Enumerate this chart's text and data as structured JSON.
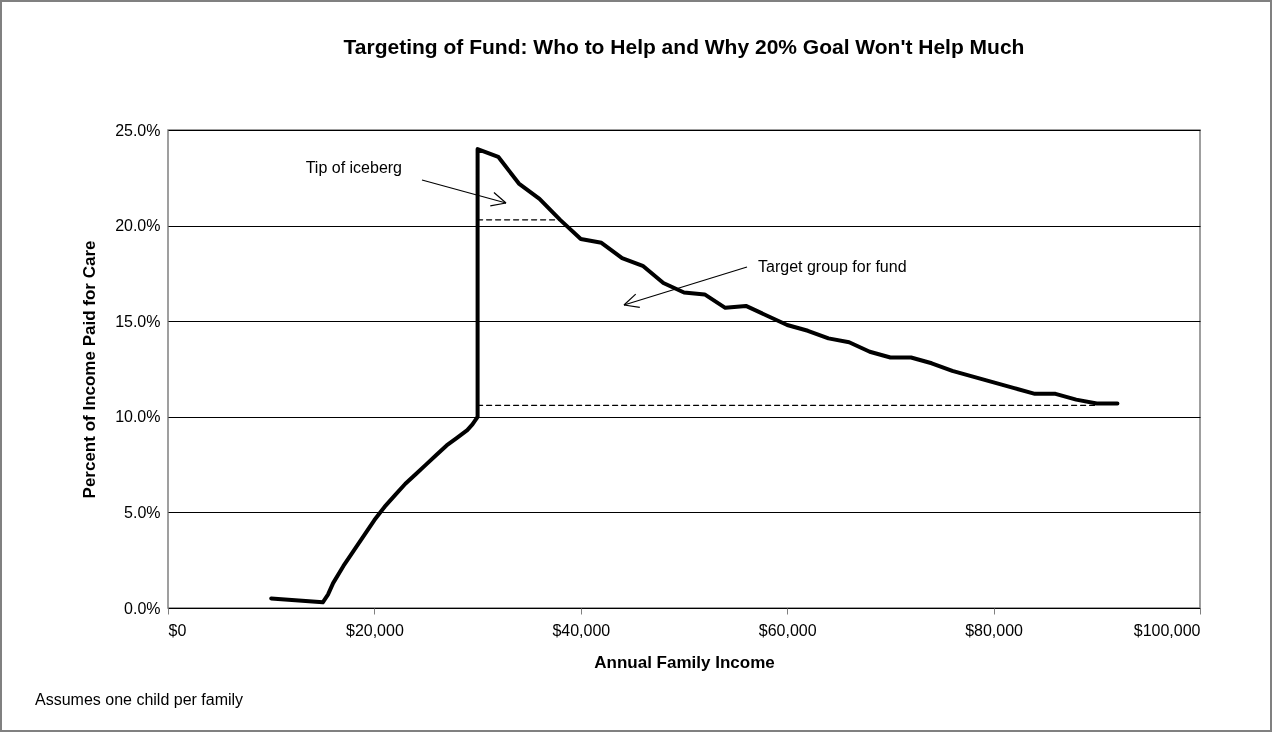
{
  "chart_data": {
    "type": "line",
    "title": "Targeting of Fund:  Who to Help and Why 20% Goal Won't Help Much",
    "xlabel": "Annual Family Income",
    "ylabel": "Percent of Income Paid for Care",
    "xlim": [
      0,
      100000
    ],
    "xticks": [
      {
        "value": 0,
        "label": "$0"
      },
      {
        "value": 20000,
        "label": "$20,000"
      },
      {
        "value": 40000,
        "label": "$40,000"
      },
      {
        "value": 60000,
        "label": "$60,000"
      },
      {
        "value": 80000,
        "label": "$80,000"
      },
      {
        "value": 100000,
        "label": "$100,000"
      }
    ],
    "ylim": [
      0,
      25
    ],
    "yticks": [
      {
        "value": 0,
        "label": "0.0%"
      },
      {
        "value": 5,
        "label": "5.0%"
      },
      {
        "value": 10,
        "label": "10.0%"
      },
      {
        "value": 15,
        "label": "15.0%"
      },
      {
        "value": 20,
        "label": "20.0%"
      },
      {
        "value": 25,
        "label": "25.0%"
      }
    ],
    "grid": "y",
    "series": [
      {
        "color": "#000000",
        "line_style": "solid",
        "x": [
          10000,
          15000,
          15500,
          16000,
          17000,
          18000,
          19000,
          20000,
          21000,
          22000,
          23000,
          24000,
          25000,
          26000,
          27000,
          28000,
          29000,
          29500,
          30000,
          30000,
          32000,
          34000,
          36000,
          38000,
          40000,
          42000,
          44000,
          46000,
          48000,
          50000,
          52000,
          54000,
          56000,
          58000,
          60000,
          62000,
          64000,
          66000,
          68000,
          70000,
          72000,
          74000,
          76000,
          78000,
          80000,
          82000,
          84000,
          86000,
          88000,
          90000,
          92000
        ],
        "values": [
          0.5,
          0.3,
          0.7,
          1.3,
          2.2,
          3.0,
          3.8,
          4.6,
          5.3,
          5.9,
          6.5,
          7.0,
          7.5,
          8.0,
          8.5,
          8.9,
          9.3,
          9.6,
          10.0,
          24.0,
          23.6,
          22.2,
          21.4,
          20.3,
          19.3,
          19.1,
          18.3,
          17.9,
          17.0,
          16.5,
          16.4,
          15.7,
          15.8,
          15.3,
          14.8,
          14.5,
          14.1,
          13.9,
          13.4,
          13.1,
          13.1,
          12.8,
          12.4,
          12.1,
          11.8,
          11.5,
          11.2,
          11.2,
          10.9,
          10.7,
          10.7
        ]
      },
      {
        "color": "#000000",
        "line_style": "dashed",
        "x": [
          30000,
          38000
        ],
        "values": [
          20.3,
          20.3
        ]
      },
      {
        "color": "#000000",
        "line_style": "dashed",
        "x": [
          30000,
          90000
        ],
        "values": [
          10.6,
          10.6
        ]
      }
    ],
    "annotations": [
      "Tip of iceberg",
      "Target group for fund",
      "Assumes one child per family"
    ]
  }
}
